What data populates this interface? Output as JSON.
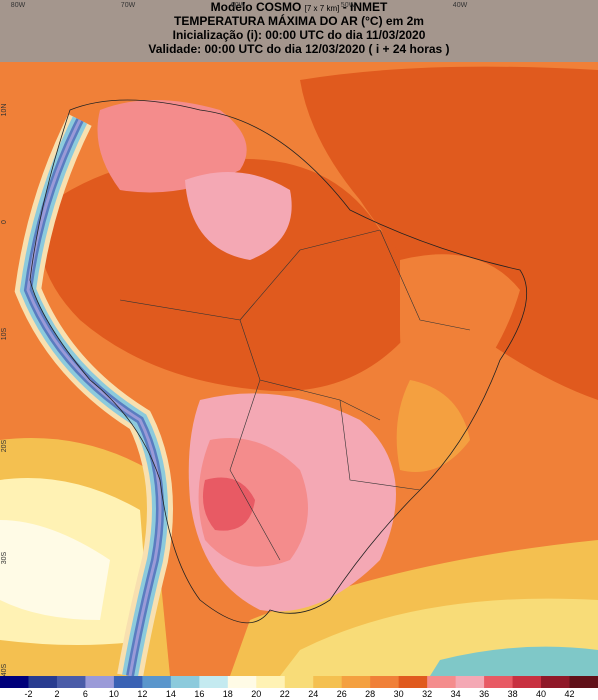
{
  "header": {
    "model_name": "Modelo COSMO",
    "resolution": "[7 x 7 km]",
    "source": "- INMET",
    "title": "TEMPERATURA MÁXIMA DO AR (°C) em 2m",
    "init": "Inicialização (i): 00:00 UTC do dia 11/03/2020",
    "valid": "Validade: 00:00 UTC do dia 12/03/2020 ( i + 24 horas )"
  },
  "lon_labels": [
    "80W",
    "70W",
    "60W",
    "50W",
    "40W"
  ],
  "lat_labels": [
    "10N",
    "0",
    "10S",
    "20S",
    "30S",
    "40S"
  ],
  "colorbar": {
    "labels": [
      -2,
      2,
      6,
      10,
      12,
      14,
      16,
      18,
      20,
      22,
      24,
      26,
      28,
      30,
      32,
      34,
      36,
      38,
      40,
      42
    ],
    "colors": [
      "#00007a",
      "#283c90",
      "#4a5ca8",
      "#9a9ad8",
      "#3a62b4",
      "#5a96cc",
      "#8ccadc",
      "#c4eaf0",
      "#fffbe6",
      "#fff2b4",
      "#f8dc78",
      "#f4c050",
      "#f4a040",
      "#f08038",
      "#e05a1e",
      "#f48c8c",
      "#f4a8b4",
      "#e85a64",
      "#c83040",
      "#901828",
      "#601018"
    ]
  }
}
